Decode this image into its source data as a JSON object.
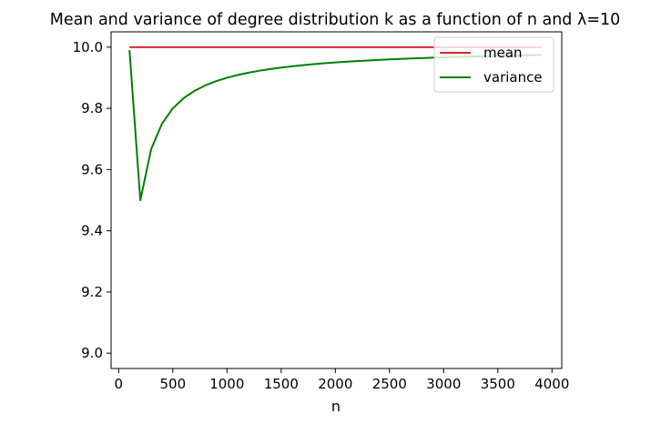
{
  "chart_data": {
    "type": "line",
    "title": "Mean and variance of degree distribution k as a function of n and λ=10",
    "xlabel": "n",
    "ylabel": "",
    "xlim": [
      -70,
      4090
    ],
    "ylim": [
      8.95,
      10.05
    ],
    "xticks": [
      0,
      500,
      1000,
      1500,
      2000,
      2500,
      3000,
      3500,
      4000
    ],
    "yticks": [
      9.0,
      9.2,
      9.4,
      9.6,
      9.8,
      10.0
    ],
    "ytick_labels": [
      "9.0",
      "9.2",
      "9.4",
      "9.6",
      "9.8",
      "10.0"
    ],
    "x": [
      100,
      200,
      300,
      400,
      500,
      600,
      700,
      800,
      900,
      1000,
      1100,
      1200,
      1300,
      1400,
      1500,
      1600,
      1700,
      1800,
      1900,
      2000,
      2100,
      2200,
      2300,
      2400,
      2500,
      2600,
      2700,
      2800,
      2900,
      3000,
      3100,
      3200,
      3300,
      3400,
      3500,
      3600,
      3700,
      3800,
      3900
    ],
    "series": [
      {
        "name": "mean",
        "color": "#d62728",
        "values": [
          10,
          10,
          10,
          10,
          10,
          10,
          10,
          10,
          10,
          10,
          10,
          10,
          10,
          10,
          10,
          10,
          10,
          10,
          10,
          10,
          10,
          10,
          10,
          10,
          10,
          10,
          10,
          10,
          10,
          10,
          10,
          10,
          10,
          10,
          10,
          10,
          10,
          10,
          10
        ]
      },
      {
        "name": "variance",
        "color": "#008000",
        "values": [
          9.99,
          9.5,
          9.6667,
          9.75,
          9.8,
          9.8333,
          9.8571,
          9.875,
          9.8889,
          9.9,
          9.9091,
          9.9167,
          9.9231,
          9.9286,
          9.9333,
          9.9375,
          9.9412,
          9.9444,
          9.9474,
          9.95,
          9.9524,
          9.9545,
          9.9565,
          9.9583,
          9.96,
          9.9615,
          9.963,
          9.9643,
          9.9655,
          9.9667,
          9.9677,
          9.9688,
          9.9697,
          9.9706,
          9.9714,
          9.9722,
          9.973,
          9.9737,
          9.9744
        ]
      }
    ],
    "legend": "top-right",
    "grid": false
  }
}
